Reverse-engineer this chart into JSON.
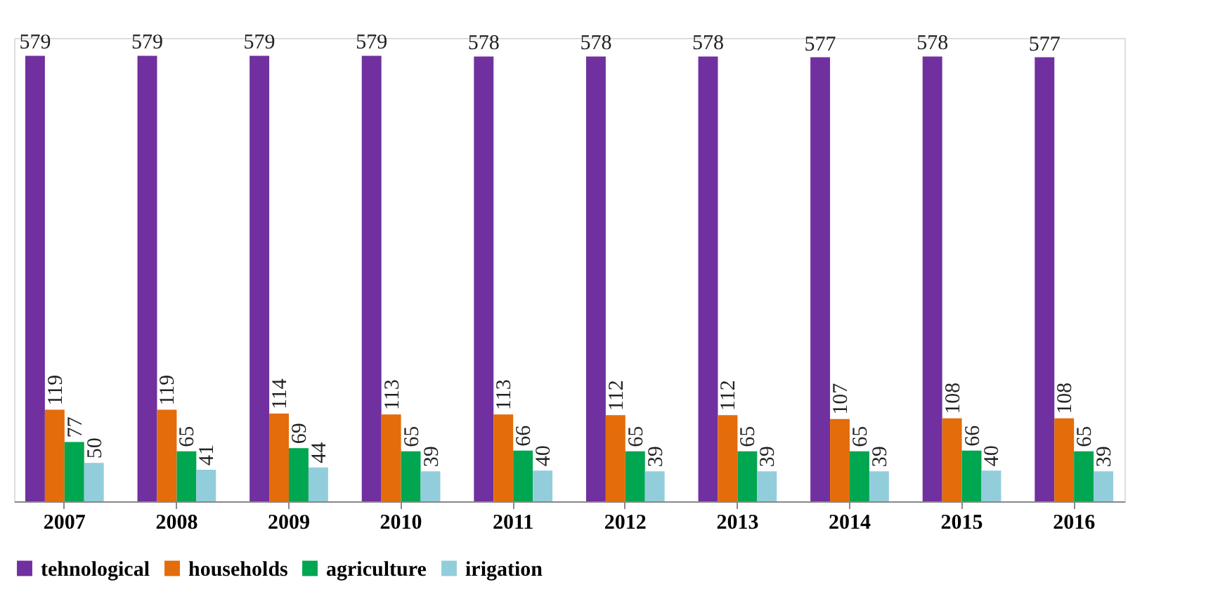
{
  "chart_data": {
    "type": "bar",
    "categories": [
      "2007",
      "2008",
      "2009",
      "2010",
      "2011",
      "2012",
      "2013",
      "2014",
      "2015",
      "2016"
    ],
    "series": [
      {
        "name": "tehnological",
        "color": "#7030a0",
        "values": [
          579,
          579,
          579,
          579,
          578,
          578,
          578,
          577,
          578,
          577
        ]
      },
      {
        "name": "households",
        "color": "#e46c0a",
        "values": [
          119,
          119,
          114,
          113,
          113,
          112,
          112,
          107,
          108,
          108
        ]
      },
      {
        "name": "agriculture",
        "color": "#00a650",
        "values": [
          77,
          65,
          69,
          65,
          66,
          65,
          65,
          65,
          66,
          65
        ]
      },
      {
        "name": "irigation",
        "color": "#92cddc",
        "values": [
          50,
          41,
          44,
          39,
          40,
          39,
          39,
          39,
          40,
          39
        ]
      }
    ],
    "data_labels": true,
    "legend": "bottom",
    "grid": false
  }
}
